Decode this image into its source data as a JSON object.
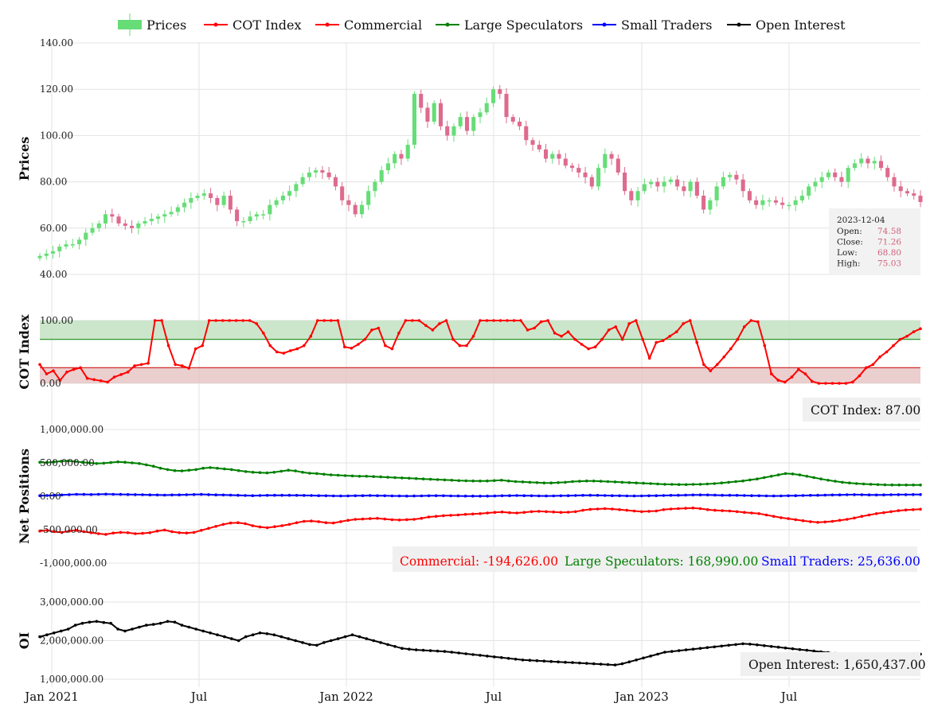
{
  "legend": [
    {
      "name": "Prices",
      "color": "#66dd77",
      "kind": "bar"
    },
    {
      "name": "COT Index",
      "color": "#ff0000",
      "kind": "line"
    },
    {
      "name": "Commercial",
      "color": "#ff0000",
      "kind": "line"
    },
    {
      "name": "Large Speculators",
      "color": "#008000",
      "kind": "line"
    },
    {
      "name": "Small Traders",
      "color": "#0000ff",
      "kind": "line"
    },
    {
      "name": "Open Interest",
      "color": "#000000",
      "kind": "line"
    }
  ],
  "colors": {
    "up": "#66dd77",
    "down": "#dd6b8e",
    "grid": "#e3e3e3",
    "cot_upper_band": "#bfe0bf",
    "cot_lower_band": "#e6c2c2"
  },
  "x_ticks": [
    "Jan 2021",
    "Jul",
    "Jan 2022",
    "Jul",
    "Jan 2023",
    "Jul"
  ],
  "panels": {
    "prices": {
      "title": "Prices",
      "y_ticks": [
        "140.00",
        "120.00",
        "100.00",
        "80.00",
        "60.00",
        "40.00"
      ],
      "ylim": [
        40,
        140
      ]
    },
    "cot": {
      "title": "COT Index",
      "y_ticks": [
        "100.00",
        "0.00"
      ],
      "ylim": [
        0,
        100
      ],
      "upper_threshold": 70,
      "lower_threshold": 25
    },
    "net": {
      "title": "Net Positions",
      "y_ticks": [
        "1,000,000.00",
        "500,000.00",
        "0.00",
        "-500,000.00",
        "-1,000,000.00"
      ],
      "ylim": [
        -1000000,
        1000000
      ]
    },
    "oi": {
      "title": "OI",
      "y_ticks": [
        "3,000,000.00",
        "2,000,000.00",
        "1,000,000.00"
      ],
      "ylim": [
        1000000,
        3000000
      ]
    }
  },
  "tooltip": {
    "date": "2023-12-04",
    "rows": [
      {
        "label": "Open:",
        "value": "74.58"
      },
      {
        "label": "Close:",
        "value": "71.26"
      },
      {
        "label": "Low:",
        "value": "68.80"
      },
      {
        "label": "High:",
        "value": "75.03"
      }
    ]
  },
  "readouts": {
    "cot": "COT Index: 87.00",
    "commercial": "Commercial: -194,626.00",
    "large": "Large Speculators: 168,990.00",
    "small": "Small Traders: 25,636.00",
    "oi": "Open Interest: 1,650,437.00"
  },
  "chart_data": {
    "type": "line",
    "x_start": "2021-01-04",
    "x_end": "2023-12-04",
    "prices": {
      "type": "candlestick",
      "close": [
        48,
        49,
        50,
        52,
        53,
        53,
        55,
        58,
        60,
        62,
        66,
        65,
        62,
        61,
        60,
        62,
        63,
        64,
        65,
        66,
        67,
        69,
        71,
        73,
        74,
        75,
        73,
        70,
        74,
        68,
        63,
        63,
        65,
        66,
        66,
        70,
        72,
        74,
        76,
        79,
        82,
        84,
        85,
        84,
        82,
        78,
        72,
        70,
        66,
        70,
        76,
        80,
        85,
        88,
        92,
        90,
        96,
        118,
        112,
        106,
        114,
        104,
        100,
        104,
        108,
        102,
        108,
        110,
        114,
        120,
        118,
        108,
        106,
        104,
        98,
        96,
        94,
        90,
        92,
        90,
        87,
        86,
        84,
        82,
        78,
        86,
        92,
        90,
        84,
        76,
        72,
        76,
        79,
        80,
        78,
        80,
        81,
        78,
        76,
        80,
        74,
        68,
        72,
        78,
        82,
        83,
        81,
        76,
        72,
        70,
        72,
        72,
        71,
        70,
        70,
        72,
        74,
        78,
        80,
        82,
        84,
        82,
        80,
        86,
        88,
        90,
        88,
        89,
        86,
        82,
        78,
        76,
        75,
        74,
        71.26
      ]
    },
    "cot": {
      "values": [
        30,
        15,
        20,
        5,
        18,
        22,
        25,
        8,
        6,
        4,
        2,
        10,
        14,
        18,
        28,
        30,
        32,
        100,
        100,
        60,
        30,
        28,
        24,
        55,
        60,
        100,
        100,
        100,
        100,
        100,
        100,
        100,
        95,
        80,
        60,
        50,
        48,
        52,
        55,
        60,
        75,
        100,
        100,
        100,
        100,
        58,
        56,
        62,
        70,
        85,
        88,
        60,
        55,
        80,
        100,
        100,
        100,
        92,
        85,
        95,
        100,
        70,
        60,
        60,
        75,
        100,
        100,
        100,
        100,
        100,
        100,
        100,
        85,
        88,
        98,
        100,
        80,
        75,
        82,
        70,
        62,
        55,
        58,
        70,
        85,
        90,
        70,
        95,
        100,
        70,
        40,
        65,
        68,
        75,
        82,
        95,
        100,
        65,
        30,
        20,
        30,
        42,
        55,
        70,
        90,
        100,
        98,
        60,
        15,
        5,
        2,
        10,
        22,
        15,
        3,
        0,
        0,
        0,
        0,
        0,
        2,
        12,
        25,
        30,
        42,
        50,
        60,
        70,
        75,
        82,
        87
      ]
    },
    "net_positions": {
      "series": [
        {
          "name": "Commercial",
          "values": [
            -520000,
            -510000,
            -530000,
            -540000,
            -520000,
            -510000,
            -530000,
            -545000,
            -560000,
            -570000,
            -550000,
            -540000,
            -545000,
            -560000,
            -555000,
            -545000,
            -520000,
            -505000,
            -530000,
            -545000,
            -550000,
            -540000,
            -510000,
            -480000,
            -450000,
            -420000,
            -400000,
            -395000,
            -410000,
            -440000,
            -460000,
            -470000,
            -455000,
            -440000,
            -420000,
            -395000,
            -375000,
            -370000,
            -380000,
            -395000,
            -400000,
            -380000,
            -360000,
            -345000,
            -340000,
            -335000,
            -330000,
            -340000,
            -350000,
            -355000,
            -350000,
            -345000,
            -330000,
            -310000,
            -300000,
            -290000,
            -285000,
            -280000,
            -270000,
            -265000,
            -260000,
            -250000,
            -240000,
            -235000,
            -245000,
            -250000,
            -240000,
            -230000,
            -225000,
            -230000,
            -235000,
            -240000,
            -238000,
            -230000,
            -210000,
            -195000,
            -190000,
            -185000,
            -190000,
            -200000,
            -210000,
            -220000,
            -230000,
            -225000,
            -220000,
            -200000,
            -190000,
            -185000,
            -180000,
            -175000,
            -185000,
            -200000,
            -210000,
            -215000,
            -220000,
            -230000,
            -240000,
            -250000,
            -260000,
            -280000,
            -300000,
            -320000,
            -335000,
            -350000,
            -365000,
            -380000,
            -390000,
            -385000,
            -375000,
            -360000,
            -345000,
            -325000,
            -300000,
            -280000,
            -260000,
            -245000,
            -230000,
            -215000,
            -205000,
            -200000,
            -194626
          ]
        },
        {
          "name": "Large Speculators",
          "values": [
            510000,
            505000,
            515000,
            525000,
            530000,
            520000,
            510000,
            500000,
            490000,
            495000,
            505000,
            515000,
            510000,
            500000,
            490000,
            470000,
            450000,
            420000,
            400000,
            385000,
            380000,
            390000,
            400000,
            420000,
            430000,
            420000,
            410000,
            400000,
            385000,
            370000,
            360000,
            355000,
            350000,
            360000,
            375000,
            390000,
            380000,
            360000,
            345000,
            340000,
            330000,
            320000,
            315000,
            310000,
            305000,
            300000,
            300000,
            295000,
            290000,
            285000,
            280000,
            275000,
            270000,
            265000,
            260000,
            255000,
            250000,
            245000,
            240000,
            235000,
            232000,
            230000,
            228000,
            230000,
            235000,
            240000,
            230000,
            220000,
            215000,
            210000,
            205000,
            200000,
            200000,
            205000,
            210000,
            220000,
            225000,
            230000,
            228000,
            225000,
            220000,
            215000,
            210000,
            205000,
            200000,
            195000,
            190000,
            185000,
            180000,
            178000,
            176000,
            175000,
            178000,
            180000,
            185000,
            190000,
            200000,
            210000,
            220000,
            230000,
            245000,
            260000,
            280000,
            300000,
            320000,
            340000,
            335000,
            320000,
            300000,
            280000,
            260000,
            240000,
            225000,
            210000,
            200000,
            190000,
            185000,
            180000,
            175000,
            172000,
            170000,
            169500,
            169200,
            169000,
            168990
          ]
        },
        {
          "name": "Small Traders",
          "values": [
            10000,
            12000,
            15000,
            20000,
            25000,
            30000,
            28000,
            26000,
            30000,
            32000,
            30000,
            28000,
            26000,
            25000,
            24000,
            22000,
            20000,
            18000,
            20000,
            22000,
            24000,
            26000,
            28000,
            25000,
            22000,
            20000,
            18000,
            15000,
            12000,
            10000,
            12000,
            14000,
            15000,
            16000,
            15000,
            14000,
            13000,
            12000,
            10000,
            8000,
            6000,
            5000,
            6000,
            8000,
            10000,
            12000,
            10000,
            8000,
            6000,
            5000,
            4000,
            5000,
            6000,
            8000,
            10000,
            8000,
            6000,
            5000,
            4000,
            3000,
            2000,
            3000,
            5000,
            8000,
            10000,
            12000,
            10000,
            8000,
            6000,
            5000,
            6000,
            8000,
            10000,
            12000,
            14000,
            15000,
            14000,
            12000,
            10000,
            8000,
            6000,
            5000,
            6000,
            8000,
            10000,
            12000,
            14000,
            16000,
            18000,
            20000,
            22000,
            20000,
            18000,
            16000,
            15000,
            14000,
            12000,
            10000,
            8000,
            6000,
            5000,
            6000,
            8000,
            10000,
            12000,
            14000,
            16000,
            18000,
            20000,
            22000,
            24000,
            25000,
            24000,
            22000,
            20000,
            22000,
            24000,
            25000,
            25500,
            25700,
            25636
          ]
        }
      ]
    },
    "open_interest": {
      "values": [
        2100000,
        2150000,
        2200000,
        2250000,
        2300000,
        2400000,
        2450000,
        2480000,
        2500000,
        2470000,
        2450000,
        2300000,
        2250000,
        2300000,
        2350000,
        2400000,
        2420000,
        2450000,
        2500000,
        2480000,
        2400000,
        2350000,
        2300000,
        2250000,
        2200000,
        2150000,
        2100000,
        2050000,
        2000000,
        2100000,
        2150000,
        2200000,
        2180000,
        2150000,
        2100000,
        2050000,
        2000000,
        1950000,
        1900000,
        1880000,
        1950000,
        2000000,
        2050000,
        2100000,
        2150000,
        2100000,
        2050000,
        2000000,
        1950000,
        1900000,
        1850000,
        1800000,
        1780000,
        1760000,
        1750000,
        1740000,
        1730000,
        1720000,
        1700000,
        1680000,
        1660000,
        1640000,
        1620000,
        1600000,
        1580000,
        1560000,
        1540000,
        1520000,
        1500000,
        1490000,
        1480000,
        1470000,
        1460000,
        1450000,
        1440000,
        1430000,
        1420000,
        1410000,
        1400000,
        1390000,
        1380000,
        1370000,
        1400000,
        1450000,
        1500000,
        1550000,
        1600000,
        1650000,
        1700000,
        1720000,
        1740000,
        1760000,
        1780000,
        1800000,
        1820000,
        1840000,
        1860000,
        1880000,
        1900000,
        1920000,
        1910000,
        1890000,
        1870000,
        1850000,
        1830000,
        1810000,
        1790000,
        1770000,
        1750000,
        1730000,
        1710000,
        1690000,
        1670000,
        1660000,
        1650000,
        1640000,
        1620000,
        1600000,
        1580000,
        1560000,
        1550000,
        1560000,
        1600000,
        1620000,
        1650437
      ]
    }
  }
}
